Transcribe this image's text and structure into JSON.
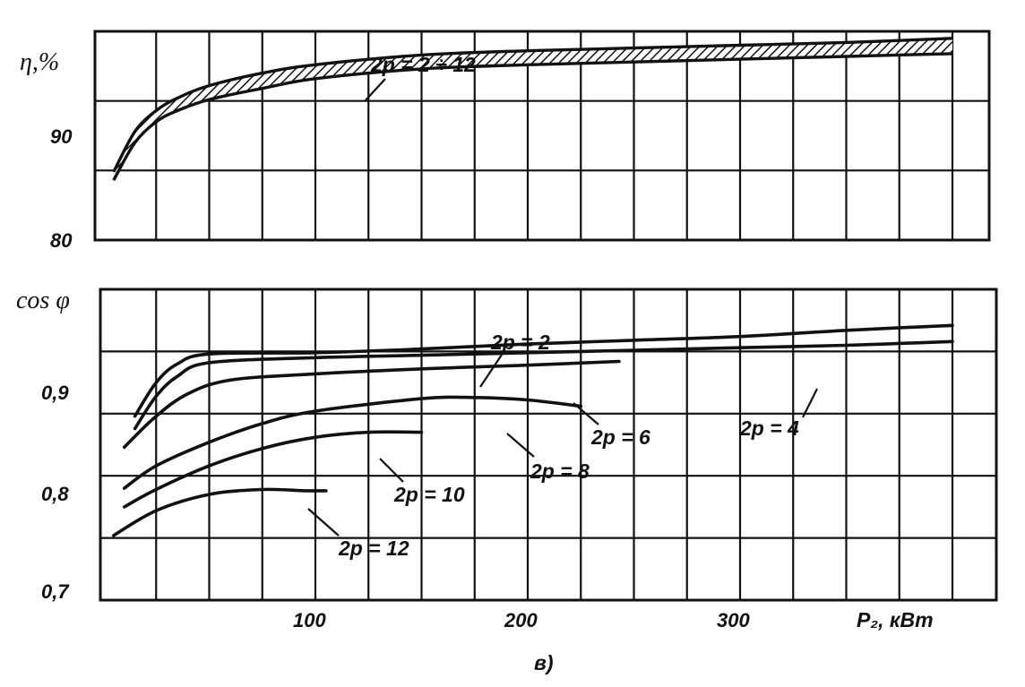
{
  "figure_label": "в)",
  "chart_data": [
    {
      "type": "area",
      "ylabel": "η,%",
      "xlim": [
        0,
        400
      ],
      "ylim": [
        80,
        95
      ],
      "yticks": [
        {
          "v": 80,
          "label": "80"
        },
        {
          "v": 90,
          "label": "90"
        }
      ],
      "grid": true,
      "series": [
        {
          "name": "2p = 2 ÷ 12",
          "x": [
            5,
            15,
            25,
            35,
            50,
            75,
            100,
            150,
            200,
            250,
            300,
            350,
            400
          ],
          "lower": [
            84.3,
            87.0,
            88.5,
            89.3,
            90.1,
            90.9,
            91.6,
            92.3,
            92.6,
            92.8,
            93.0,
            93.2,
            93.4
          ],
          "upper": [
            84.9,
            87.8,
            89.3,
            90.2,
            91.1,
            92.0,
            92.6,
            93.3,
            93.6,
            93.8,
            94.0,
            94.2,
            94.5
          ]
        }
      ]
    },
    {
      "type": "line",
      "ylabel": "cos φ",
      "xlabel": "P₂, кВт",
      "xlim": [
        0,
        400
      ],
      "ylim": [
        0.7,
        0.95
      ],
      "xticks": [
        {
          "v": 100,
          "label": "100"
        },
        {
          "v": 200,
          "label": "200"
        },
        {
          "v": 300,
          "label": "300"
        }
      ],
      "yticks": [
        {
          "v": 0.7,
          "label": "0,7"
        },
        {
          "v": 0.8,
          "label": "0,8"
        },
        {
          "v": 0.9,
          "label": "0,9"
        }
      ],
      "grid": true,
      "series": [
        {
          "name": "2p = 2",
          "x": [
            15,
            25,
            35,
            50,
            100,
            150,
            200,
            250,
            300,
            350,
            400
          ],
          "y": [
            0.848,
            0.875,
            0.89,
            0.898,
            0.899,
            0.902,
            0.906,
            0.909,
            0.912,
            0.917,
            0.921
          ]
        },
        {
          "name": "2p = 4",
          "x": [
            15,
            25,
            35,
            50,
            100,
            150,
            200,
            250,
            300,
            350,
            400
          ],
          "y": [
            0.838,
            0.864,
            0.88,
            0.891,
            0.895,
            0.897,
            0.899,
            0.901,
            0.903,
            0.905,
            0.908
          ]
        },
        {
          "name": "2p = 6",
          "x": [
            10,
            25,
            40,
            60,
            100,
            150,
            200,
            243
          ],
          "y": [
            0.823,
            0.848,
            0.866,
            0.877,
            0.882,
            0.886,
            0.889,
            0.892
          ]
        },
        {
          "name": "2p = 8",
          "x": [
            10,
            25,
            50,
            75,
            100,
            150,
            175,
            200,
            225
          ],
          "y": [
            0.79,
            0.808,
            0.827,
            0.842,
            0.852,
            0.862,
            0.863,
            0.861,
            0.856
          ]
        },
        {
          "name": "2p = 10",
          "x": [
            10,
            25,
            50,
            75,
            100,
            125,
            150
          ],
          "y": [
            0.775,
            0.789,
            0.808,
            0.822,
            0.831,
            0.835,
            0.835
          ]
        },
        {
          "name": "2p = 12",
          "x": [
            5,
            25,
            50,
            75,
            95,
            105
          ],
          "y": [
            0.752,
            0.772,
            0.785,
            0.789,
            0.788,
            0.788
          ]
        }
      ],
      "annotations": [
        {
          "text": "2p = 2",
          "series": "2p = 2"
        },
        {
          "text": "2p = 4",
          "series": "2p = 4"
        },
        {
          "text": "2p = 6",
          "series": "2p = 6"
        },
        {
          "text": "2p = 8",
          "series": "2p = 8"
        },
        {
          "text": "2p = 10",
          "series": "2p = 10"
        },
        {
          "text": "2p = 12",
          "series": "2p = 12"
        }
      ]
    }
  ]
}
